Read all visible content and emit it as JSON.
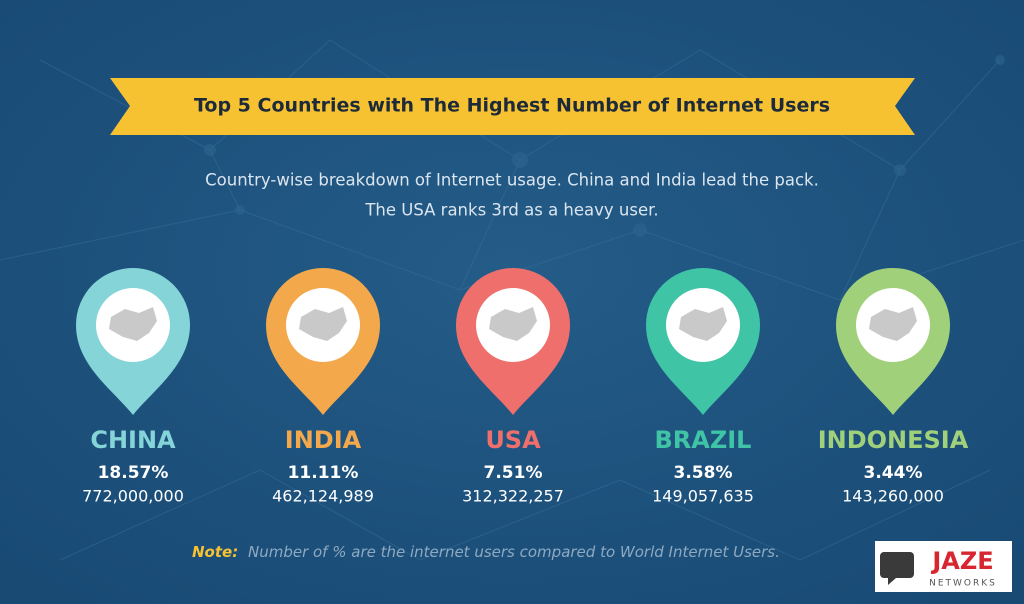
{
  "header": {
    "title": "Top 5 Countries with The Highest Number of Internet Users",
    "subtitle": [
      "Country-wise breakdown of Internet usage. China and India lead the pack.",
      "The USA ranks 3rd as a heavy user."
    ]
  },
  "countries": [
    {
      "name": "CHINA",
      "percent": "18.57%",
      "users": "772,000,000",
      "color": "#84d4d8"
    },
    {
      "name": "INDIA",
      "percent": "11.11%",
      "users": "462,124,989",
      "color": "#f2a84b"
    },
    {
      "name": "USA",
      "percent": "7.51%",
      "users": "312,322,257",
      "color": "#ee6f6b"
    },
    {
      "name": "BRAZIL",
      "percent": "3.58%",
      "users": "149,057,635",
      "color": "#3fc4a6"
    },
    {
      "name": "INDONESIA",
      "percent": "3.44%",
      "users": "143,260,000",
      "color": "#a1d07b"
    }
  ],
  "note": {
    "label": "Note:",
    "text": "Number of % are the internet users compared to World Internet Users."
  },
  "logo": {
    "name": "JAZE",
    "tagline": "NETWORKS"
  }
}
